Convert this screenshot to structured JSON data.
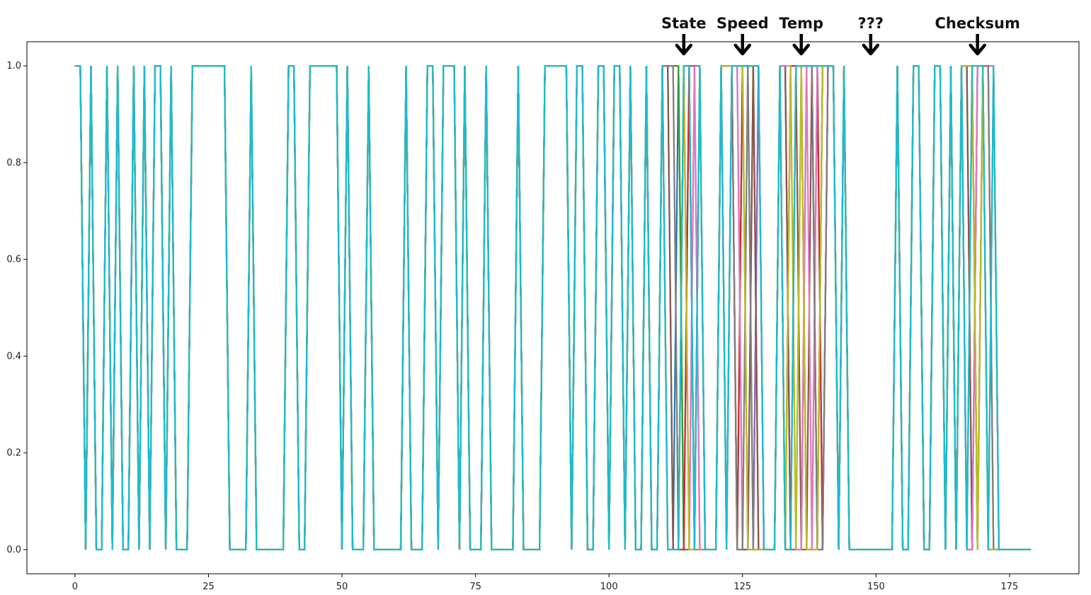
{
  "chart_data": {
    "type": "line",
    "title": "",
    "xlabel": "",
    "ylabel": "",
    "xlim": [
      -9,
      188
    ],
    "ylim": [
      -0.05,
      1.05
    ],
    "x_ticks": [
      0,
      25,
      50,
      75,
      100,
      125,
      150,
      175
    ],
    "y_ticks": [
      0.0,
      0.2,
      0.4,
      0.6,
      0.8,
      1.0
    ],
    "y_tick_labels": [
      "0.0",
      "0.2",
      "0.4",
      "0.6",
      "0.8",
      "1.0"
    ],
    "grid": false,
    "legend": "none",
    "common_levels": [
      [
        0,
        1
      ],
      [
        2,
        0
      ],
      [
        3,
        1
      ],
      [
        4,
        0
      ],
      [
        6,
        1
      ],
      [
        7,
        0
      ],
      [
        8,
        1
      ],
      [
        9,
        0
      ],
      [
        11,
        1
      ],
      [
        12,
        0
      ],
      [
        13,
        1
      ],
      [
        14,
        0
      ],
      [
        15,
        1
      ],
      [
        17,
        0
      ],
      [
        18,
        1
      ],
      [
        19,
        0
      ],
      [
        22,
        1
      ],
      [
        29,
        0
      ],
      [
        33,
        1
      ],
      [
        34,
        0
      ],
      [
        40,
        1
      ],
      [
        42,
        0
      ],
      [
        44,
        1
      ],
      [
        50,
        0
      ],
      [
        51,
        1
      ],
      [
        52,
        0
      ],
      [
        55,
        1
      ],
      [
        56,
        0
      ],
      [
        62,
        1
      ],
      [
        63,
        0
      ],
      [
        66,
        1
      ],
      [
        68,
        0
      ],
      [
        69,
        1
      ],
      [
        72,
        0
      ],
      [
        73,
        1
      ],
      [
        74,
        0
      ],
      [
        77,
        1
      ],
      [
        78,
        0
      ],
      [
        83,
        1
      ],
      [
        84,
        0
      ],
      [
        88,
        1
      ],
      [
        93,
        0
      ],
      [
        94,
        1
      ],
      [
        96,
        0
      ],
      [
        98,
        1
      ],
      [
        100,
        0
      ],
      [
        101,
        1
      ],
      [
        103,
        0
      ],
      [
        104,
        1
      ],
      [
        105,
        0
      ],
      [
        107,
        1
      ],
      [
        108,
        0
      ],
      [
        110,
        1
      ],
      [
        118,
        0
      ],
      [
        121,
        1
      ],
      [
        129,
        0
      ],
      [
        132,
        1
      ],
      [
        133,
        0
      ],
      [
        141,
        1
      ],
      [
        143,
        0
      ],
      [
        144,
        1
      ],
      [
        145,
        0
      ],
      [
        154,
        1
      ],
      [
        155,
        0
      ],
      [
        157,
        1
      ],
      [
        159,
        0
      ],
      [
        161,
        1
      ],
      [
        163,
        0
      ],
      [
        164,
        1
      ],
      [
        165,
        0
      ],
      [
        166,
        1
      ],
      [
        173,
        0
      ],
      [
        179,
        0
      ]
    ],
    "series_colors": [
      "#1f77b4",
      "#ff7f0e",
      "#2ca02c",
      "#d62728",
      "#9467bd",
      "#8c564b",
      "#e377c2",
      "#7f7f7f",
      "#bcbd22",
      "#17becf"
    ],
    "annotations": [
      {
        "label": "State",
        "x": 114
      },
      {
        "label": "Speed",
        "x": 125
      },
      {
        "label": "Temp",
        "x": 136
      },
      {
        "label": "???",
        "x": 149
      },
      {
        "label": "Checksum",
        "x": 169
      }
    ]
  }
}
